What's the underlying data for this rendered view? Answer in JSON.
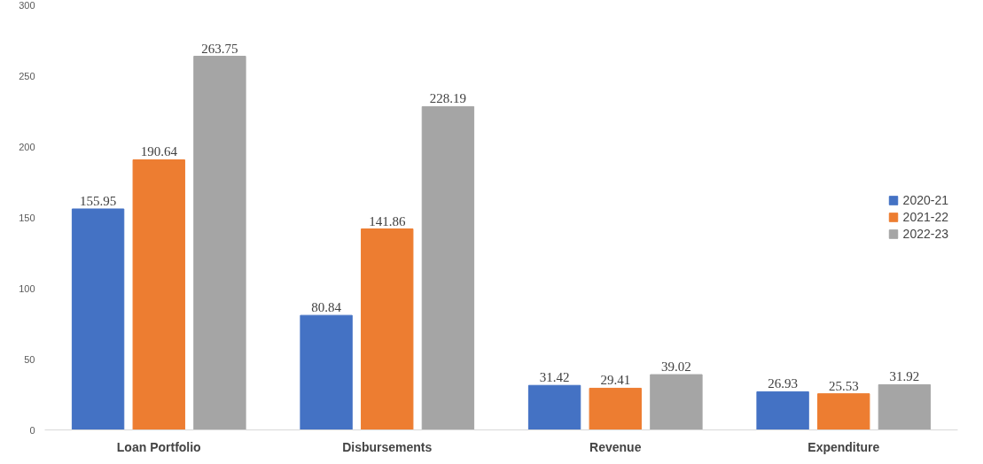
{
  "chart_data": {
    "type": "bar",
    "categories": [
      "Loan Portfolio",
      "Disbursements",
      "Revenue",
      "Expenditure"
    ],
    "series": [
      {
        "name": "2020-21",
        "color": "#4472c4",
        "values": [
          155.95,
          80.84,
          31.42,
          26.93
        ]
      },
      {
        "name": "2021-22",
        "color": "#ed7d31",
        "values": [
          190.64,
          141.86,
          29.41,
          25.53
        ]
      },
      {
        "name": "2022-23",
        "color": "#a5a5a5",
        "values": [
          263.75,
          228.19,
          39.02,
          31.92
        ]
      }
    ],
    "ylim": [
      0,
      300
    ],
    "yticks": [
      0,
      50,
      100,
      150,
      200,
      250,
      300
    ],
    "grid": false,
    "legend": "right",
    "data_labels": true
  }
}
